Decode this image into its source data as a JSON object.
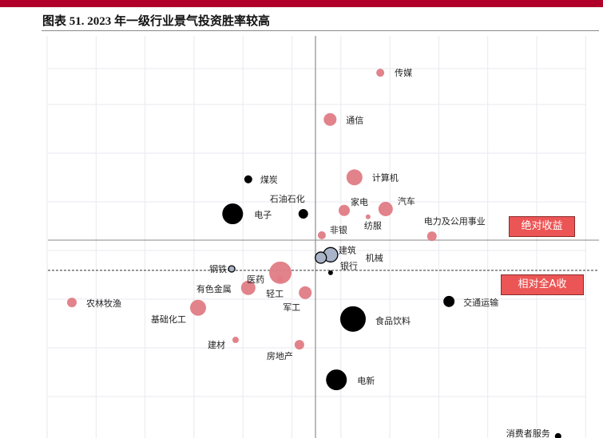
{
  "header": {
    "title": "图表 51. 2023 年一级行业景气投资胜率较高"
  },
  "colors": {
    "topbar": "#B0002A",
    "pink": "#E07B84",
    "black": "#000000",
    "gray": "#A9B4C8"
  },
  "chart_data": {
    "type": "scatter",
    "title": "图表 51. 2023 年一级行业景气投资胜率较高",
    "xlabel": "",
    "ylabel": "",
    "grid": true,
    "xlim": [
      -5.5,
      5.5
    ],
    "ylim": [
      -4.1,
      4.2
    ],
    "reference_lines": [
      {
        "label": "绝对收益",
        "orientation": "horizontal",
        "y": 0,
        "style": "solid"
      },
      {
        "label": "相对全A收",
        "orientation": "horizontal",
        "y": -0.62,
        "style": "dashed"
      }
    ],
    "points": [
      {
        "name": "传媒",
        "x": 1.33,
        "y": 3.44,
        "size": 5,
        "color": "pink"
      },
      {
        "name": "通信",
        "x": 0.3,
        "y": 2.48,
        "size": 8,
        "color": "pink"
      },
      {
        "name": "煤炭",
        "x": -1.38,
        "y": 1.25,
        "size": 5,
        "color": "black"
      },
      {
        "name": "计算机",
        "x": 0.8,
        "y": 1.29,
        "size": 10,
        "color": "pink"
      },
      {
        "name": "石油石化",
        "x": -0.25,
        "y": 0.54,
        "size": 6,
        "color": "black"
      },
      {
        "name": "电子",
        "x": -1.7,
        "y": 0.54,
        "size": 13,
        "color": "black"
      },
      {
        "name": "家电",
        "x": 0.59,
        "y": 0.61,
        "size": 7,
        "color": "pink"
      },
      {
        "name": "汽车",
        "x": 1.44,
        "y": 0.64,
        "size": 9,
        "color": "pink"
      },
      {
        "name": "纺服",
        "x": 1.08,
        "y": 0.48,
        "size": 3,
        "color": "pink"
      },
      {
        "name": "非银",
        "x": 0.13,
        "y": 0.1,
        "size": 5,
        "color": "pink"
      },
      {
        "name": "电力及公用事业",
        "x": 2.39,
        "y": 0.08,
        "size": 6,
        "color": "pink"
      },
      {
        "name": "建筑",
        "x": 0.31,
        "y": -0.3,
        "size": 9,
        "color": "gray"
      },
      {
        "name": "机械",
        "x": 0.11,
        "y": -0.36,
        "size": 7,
        "color": "gray"
      },
      {
        "name": "银行",
        "x": 0.31,
        "y": -0.67,
        "size": 3,
        "color": "black"
      },
      {
        "name": "钢铁",
        "x": -1.72,
        "y": -0.59,
        "size": 4,
        "color": "gray"
      },
      {
        "name": "医药",
        "x": -0.72,
        "y": -0.67,
        "size": 14,
        "color": "pink"
      },
      {
        "name": "轻工",
        "x": -0.72,
        "y": -0.8,
        "size": 4,
        "color": "pink"
      },
      {
        "name": "有色金属",
        "x": -1.38,
        "y": -0.98,
        "size": 9,
        "color": "pink"
      },
      {
        "name": "军工",
        "x": -0.21,
        "y": -1.08,
        "size": 8,
        "color": "pink"
      },
      {
        "name": "农林牧渔",
        "x": -5.0,
        "y": -1.28,
        "size": 6,
        "color": "pink"
      },
      {
        "name": "交通运输",
        "x": 2.74,
        "y": -1.26,
        "size": 7,
        "color": "black"
      },
      {
        "name": "基础化工",
        "x": -2.41,
        "y": -1.39,
        "size": 10,
        "color": "pink"
      },
      {
        "name": "食品饮料",
        "x": 0.77,
        "y": -1.62,
        "size": 16,
        "color": "black"
      },
      {
        "name": "建材",
        "x": -1.64,
        "y": -2.05,
        "size": 4,
        "color": "pink"
      },
      {
        "name": "房地产",
        "x": -0.33,
        "y": -2.15,
        "size": 6,
        "color": "pink"
      },
      {
        "name": "电新",
        "x": 0.43,
        "y": -2.87,
        "size": 13,
        "color": "black"
      },
      {
        "name": "消费者服务",
        "x": 4.98,
        "y": -4.03,
        "size": 4,
        "color": "black"
      }
    ]
  }
}
